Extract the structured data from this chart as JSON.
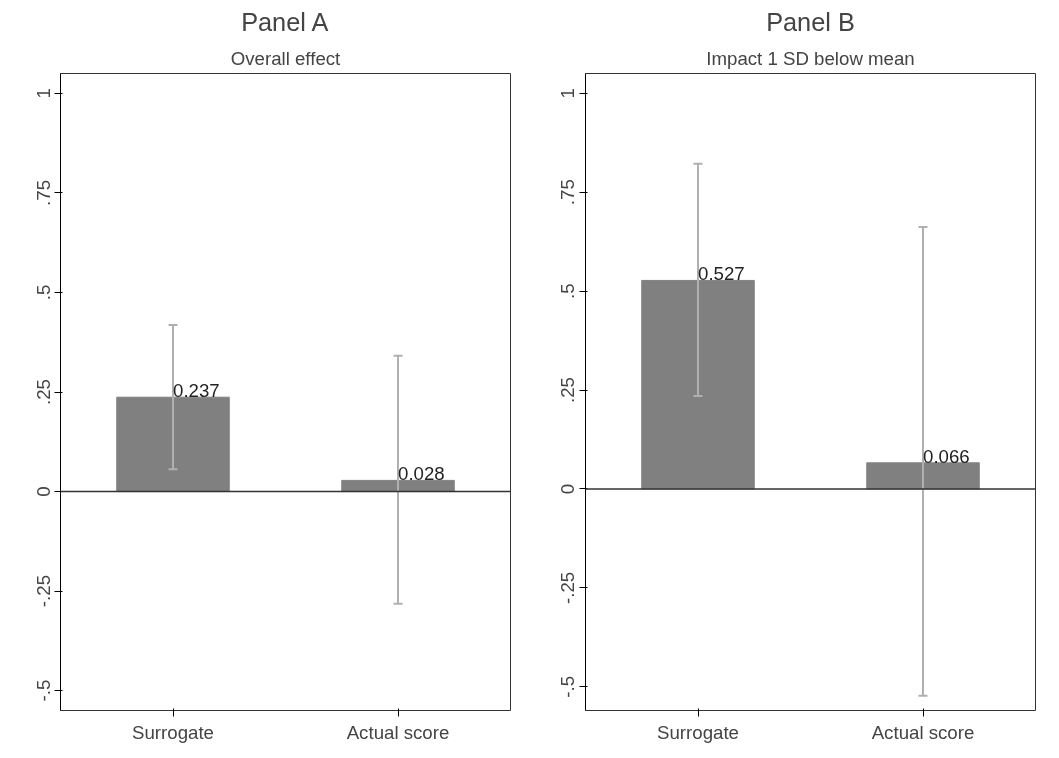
{
  "chart_data": [
    {
      "type": "bar",
      "title": "Panel A",
      "subtitle": "Overall effect",
      "categories": [
        "Surrogate",
        "Actual score"
      ],
      "values": [
        0.237,
        0.028
      ],
      "color": "#808080",
      "errors": [
        [
          0.056,
          0.418
        ],
        [
          -0.282,
          0.341
        ]
      ],
      "data_labels": true,
      "ylim": [
        -0.55,
        1.05
      ],
      "yticks": [
        {
          "value": -0.5,
          "label": "-.5"
        },
        {
          "value": -0.25,
          "label": "-.25"
        },
        0,
        {
          "value": 0.25,
          "label": ".25"
        },
        {
          "value": 0.5,
          "label": ".5"
        },
        {
          "value": 0.75,
          "label": ".75"
        },
        1
      ],
      "ref_lines": [
        {
          "axis": "y",
          "value": 0
        }
      ],
      "grid": false
    },
    {
      "type": "bar",
      "title": "Panel B",
      "subtitle": "Impact 1 SD below mean",
      "categories": [
        "Surrogate",
        "Actual score"
      ],
      "values": [
        0.527,
        0.066
      ],
      "color": "#808080",
      "errors": [
        [
          0.235,
          0.822
        ],
        [
          -0.523,
          0.662
        ]
      ],
      "data_labels": true,
      "ylim": [
        -0.56,
        1.05
      ],
      "yticks": [
        {
          "value": -0.5,
          "label": "-.5"
        },
        {
          "value": -0.25,
          "label": "-.25"
        },
        0,
        {
          "value": 0.25,
          "label": ".25"
        },
        {
          "value": 0.5,
          "label": ".5"
        },
        {
          "value": 0.75,
          "label": ".75"
        },
        1
      ],
      "ref_lines": [
        {
          "axis": "y",
          "value": 0
        }
      ],
      "grid": false
    }
  ]
}
